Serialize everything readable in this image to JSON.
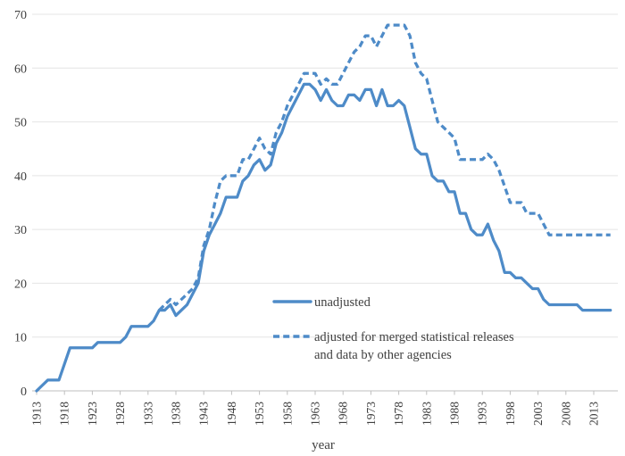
{
  "chart_data": {
    "type": "line",
    "title": "",
    "xlabel": "year",
    "ylabel": "",
    "xlim": [
      1913,
      2016
    ],
    "ylim": [
      0,
      70
    ],
    "grid": "horizontal-only",
    "legend_position": "inside-lower-center",
    "x_ticks": [
      1913,
      1918,
      1923,
      1928,
      1933,
      1938,
      1943,
      1948,
      1953,
      1958,
      1963,
      1968,
      1973,
      1978,
      1983,
      1988,
      1993,
      1998,
      2003,
      2008,
      2013
    ],
    "y_ticks": [
      0,
      10,
      20,
      30,
      40,
      50,
      60,
      70
    ],
    "x_tick_rotation_deg": 90,
    "series": [
      {
        "name": "unadjusted",
        "style": "solid",
        "color": "#4e8bc8",
        "x_start": 1913,
        "x_step": 1,
        "values": [
          0,
          1,
          2,
          2,
          2,
          5,
          8,
          8,
          8,
          8,
          8,
          9,
          9,
          9,
          9,
          9,
          10,
          12,
          12,
          12,
          12,
          13,
          15,
          15,
          16,
          14,
          15,
          16,
          18,
          20,
          26,
          29,
          31,
          33,
          36,
          36,
          36,
          39,
          40,
          42,
          43,
          41,
          42,
          46,
          48,
          51,
          53,
          55,
          57,
          57,
          56,
          54,
          56,
          54,
          53,
          53,
          55,
          55,
          54,
          56,
          56,
          53,
          56,
          53,
          53,
          54,
          53,
          49,
          45,
          44,
          44,
          40,
          39,
          39,
          37,
          37,
          33,
          33,
          30,
          29,
          29,
          31,
          28,
          26,
          22,
          22,
          21,
          21,
          20,
          19,
          19,
          17,
          16,
          16,
          16,
          16,
          16,
          16,
          15,
          15,
          15,
          15,
          15,
          15
        ]
      },
      {
        "name": "adjusted for merged statistical releases and data by other agencies",
        "style": "dashed",
        "color": "#4e8bc8",
        "x_start": 1935,
        "x_step": 1,
        "values": [
          15,
          16,
          17,
          16,
          17,
          18,
          19,
          21,
          27,
          30,
          35,
          39,
          40,
          40,
          40,
          43,
          43,
          45,
          47,
          45,
          44,
          48,
          50,
          53,
          55,
          57,
          59,
          59,
          59,
          57,
          58,
          57,
          57,
          59,
          61,
          63,
          64,
          66,
          66,
          64,
          66,
          68,
          68,
          68,
          68,
          66,
          61,
          59,
          58,
          54,
          50,
          49,
          48,
          47,
          43,
          43,
          43,
          43,
          43,
          44,
          43,
          41,
          38,
          35,
          35,
          35,
          33,
          33,
          33,
          31,
          29,
          29,
          29,
          29,
          29,
          29,
          29,
          29,
          29,
          29,
          29,
          29
        ]
      }
    ],
    "legend": [
      {
        "label": "unadjusted",
        "style": "solid"
      },
      {
        "label_line1": "adjusted for merged statistical releases",
        "label_line2": "and data by other agencies",
        "style": "dashed"
      }
    ]
  },
  "colors": {
    "series_blue": "#4e8bc8",
    "gridline": "#e4e4e4",
    "axis_line": "#bfbfbf",
    "text": "#3f3f3f",
    "background": "#ffffff"
  }
}
